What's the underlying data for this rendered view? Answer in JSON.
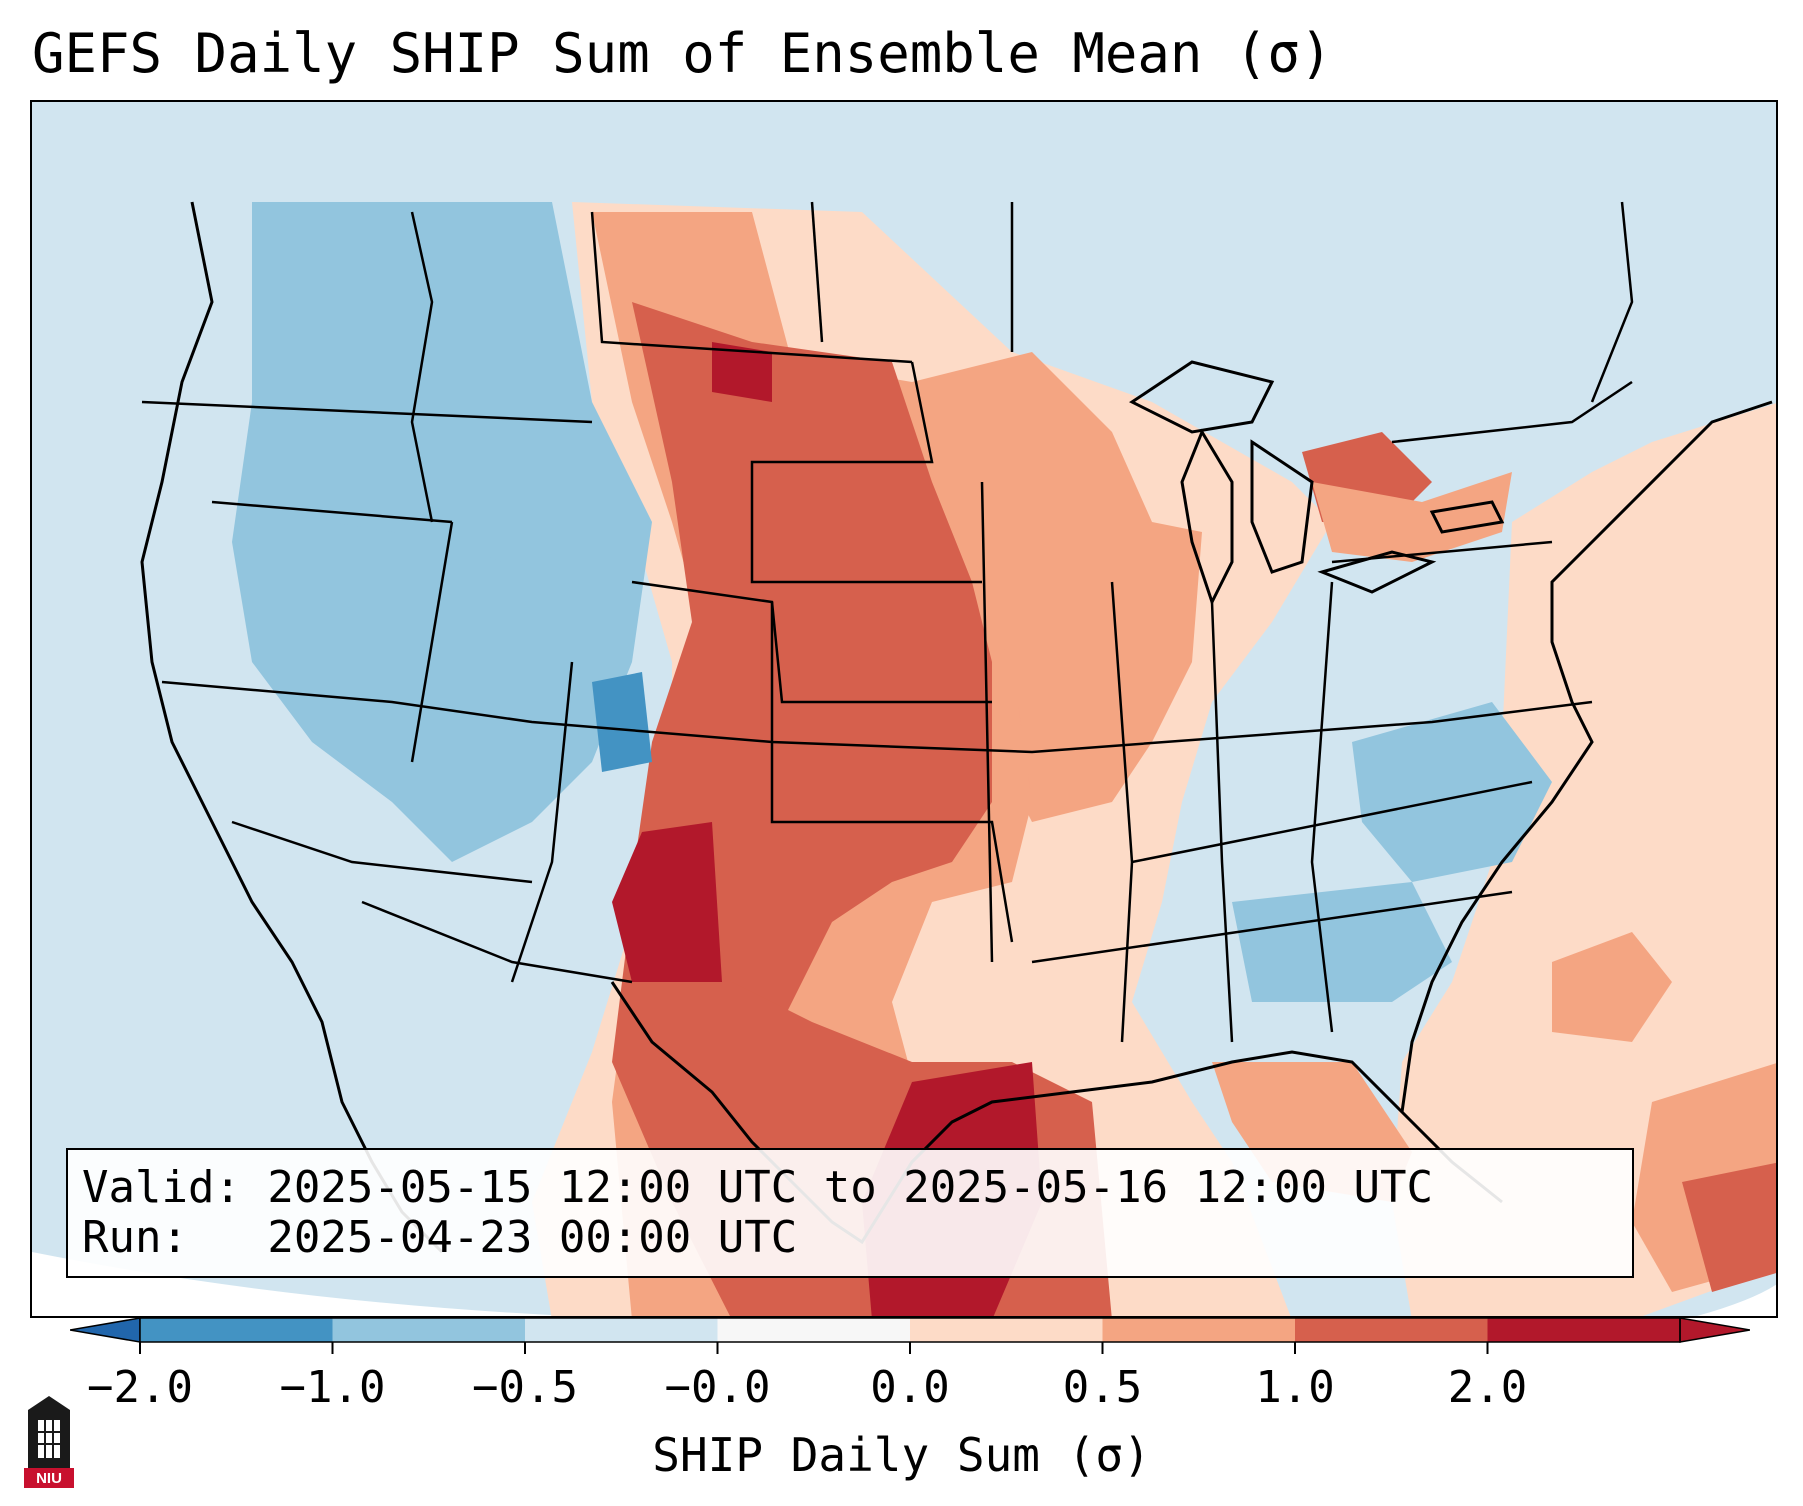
{
  "title": "GEFS Daily SHIP Sum of Ensemble Mean (σ)",
  "info": {
    "valid": "Valid: 2025-05-15 12:00 UTC to 2025-05-16 12:00 UTC",
    "run": "Run:   2025-04-23 00:00 UTC"
  },
  "colorbar": {
    "label": "SHIP Daily Sum (σ)",
    "ticks": [
      "−2.0",
      "−1.0",
      "−0.5",
      "−0.0",
      "0.0",
      "0.5",
      "1.0",
      "2.0"
    ],
    "colors": [
      "#4393c3",
      "#92c5de",
      "#d1e5f0",
      "#f7f7f7",
      "#fddbc7",
      "#f4a582",
      "#d6604d",
      "#b2182b"
    ],
    "under_color": "#2166ac",
    "over_color": "#b2182b"
  },
  "logo": {
    "text": "NIU",
    "colors": {
      "tower": "#1a1a1a",
      "badge": "#c8102e"
    }
  },
  "map": {
    "region": "Continental United States",
    "ocean_color": "#d1e5f0",
    "border_color": "#000000",
    "field_blocks": [
      {
        "level": "#fddbc7",
        "area": "Northern Plains"
      },
      {
        "level": "#f4a582",
        "area": "Upper Midwest"
      },
      {
        "level": "#d6604d",
        "area": "Central Plains"
      },
      {
        "level": "#b2182b",
        "area": "Western Gulf Coast"
      },
      {
        "level": "#92c5de",
        "area": "Intermountain West"
      },
      {
        "level": "#4393c3",
        "area": "Colorado"
      }
    ]
  }
}
